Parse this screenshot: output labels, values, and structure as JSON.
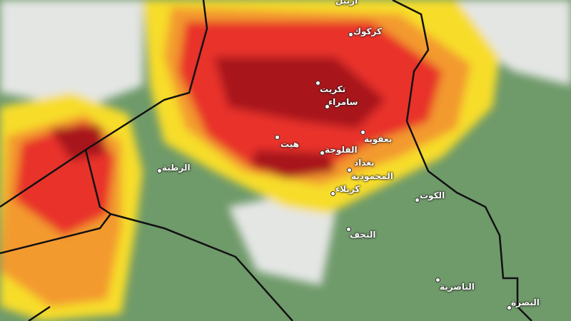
{
  "map": {
    "layer": "weather-radar",
    "colors": {
      "land": "#6f9a6a",
      "cloud": "#e4e6e4",
      "light": "#f7dd2a",
      "moderate": "#f39a2e",
      "heavy": "#e8332a",
      "intense": "#a8141c",
      "border": "#111111"
    },
    "cities": [
      {
        "name": "أربيل"
      },
      {
        "name": "كركوك"
      },
      {
        "name": "تكريت"
      },
      {
        "name": "سامراء"
      },
      {
        "name": "بعقوبة"
      },
      {
        "name": "هيت"
      },
      {
        "name": "الفلوجة"
      },
      {
        "name": "بغداد"
      },
      {
        "name": "المحمودية"
      },
      {
        "name": "كربلاء"
      },
      {
        "name": "الرطبة"
      },
      {
        "name": "الكوت"
      },
      {
        "name": "النجف"
      },
      {
        "name": "الناصرية"
      },
      {
        "name": "البصرة"
      }
    ]
  }
}
